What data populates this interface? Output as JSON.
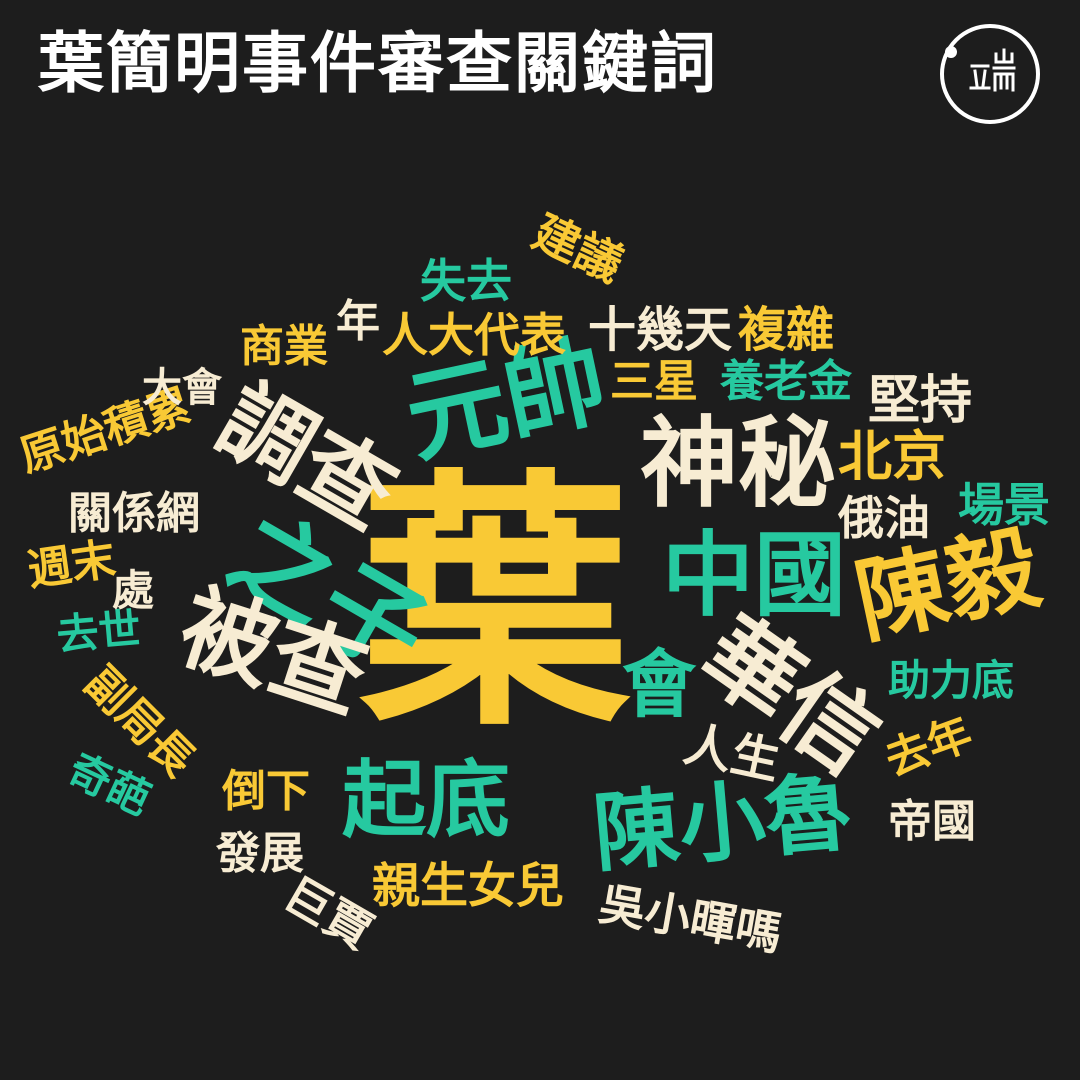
{
  "title": "葉簡明事件審查關鍵詞",
  "colors": {
    "background": "#1d1d1d",
    "yellow": "#f9c935",
    "green": "#26c9a0",
    "cream": "#f7ecd3",
    "title": "#ffffff"
  },
  "logo": {
    "name": "initium-logo-icon",
    "text": "端"
  },
  "words": [
    {
      "id": "ye",
      "text": "葉",
      "color": "yellow"
    },
    {
      "id": "yuanshuai",
      "text": "元帥",
      "color": "green"
    },
    {
      "id": "shenmi",
      "text": "神秘",
      "color": "cream"
    },
    {
      "id": "diaocha",
      "text": "調查",
      "color": "cream"
    },
    {
      "id": "zhizi",
      "text": "之子",
      "color": "green"
    },
    {
      "id": "zhongguo",
      "text": "中國",
      "color": "green"
    },
    {
      "id": "chenyi",
      "text": "陳毅",
      "color": "yellow"
    },
    {
      "id": "beicha",
      "text": "被查",
      "color": "cream"
    },
    {
      "id": "huaxin",
      "text": "華信",
      "color": "cream"
    },
    {
      "id": "hui",
      "text": "會",
      "color": "green"
    },
    {
      "id": "qidi",
      "text": "起底",
      "color": "green"
    },
    {
      "id": "chenxiaolu",
      "text": "陳小魯",
      "color": "green"
    },
    {
      "id": "jianchi",
      "text": "堅持",
      "color": "cream"
    },
    {
      "id": "beijing",
      "text": "北京",
      "color": "yellow"
    },
    {
      "id": "eyou",
      "text": "俄油",
      "color": "cream"
    },
    {
      "id": "changjing",
      "text": "場景",
      "color": "green"
    },
    {
      "id": "zhulidi",
      "text": "助力底",
      "color": "green"
    },
    {
      "id": "qunian",
      "text": "去年",
      "color": "yellow"
    },
    {
      "id": "diguo",
      "text": "帝國",
      "color": "cream"
    },
    {
      "id": "rensheng",
      "text": "人生",
      "color": "cream"
    },
    {
      "id": "wuxiaohuima",
      "text": "吳小暉嗎",
      "color": "cream"
    },
    {
      "id": "qinshengnver",
      "text": "親生女兒",
      "color": "yellow"
    },
    {
      "id": "jugu",
      "text": "巨賈",
      "color": "cream"
    },
    {
      "id": "fazhan",
      "text": "發展",
      "color": "cream"
    },
    {
      "id": "daoxia",
      "text": "倒下",
      "color": "yellow"
    },
    {
      "id": "qipa",
      "text": "奇葩",
      "color": "green"
    },
    {
      "id": "fujuzhang",
      "text": "副局長",
      "color": "yellow"
    },
    {
      "id": "qushi",
      "text": "去世",
      "color": "green"
    },
    {
      "id": "zhoumo",
      "text": "週末",
      "color": "yellow"
    },
    {
      "id": "chu",
      "text": "處",
      "color": "cream"
    },
    {
      "id": "guanxiwang",
      "text": "關係網",
      "color": "cream"
    },
    {
      "id": "yuanshijilei",
      "text": "原始積累",
      "color": "yellow"
    },
    {
      "id": "dahui",
      "text": "大會",
      "color": "cream"
    },
    {
      "id": "shangye",
      "text": "商業",
      "color": "yellow"
    },
    {
      "id": "nian",
      "text": "年",
      "color": "cream"
    },
    {
      "id": "renda",
      "text": "人大代表",
      "color": "yellow"
    },
    {
      "id": "shiji",
      "text": "十幾天",
      "color": "cream"
    },
    {
      "id": "fuza",
      "text": "複雜",
      "color": "yellow"
    },
    {
      "id": "shiqu",
      "text": "失去",
      "color": "green"
    },
    {
      "id": "jianyi",
      "text": "建議",
      "color": "yellow"
    },
    {
      "id": "sanxing",
      "text": "三星",
      "color": "yellow"
    },
    {
      "id": "yanglaojin",
      "text": "養老金",
      "color": "green"
    }
  ]
}
